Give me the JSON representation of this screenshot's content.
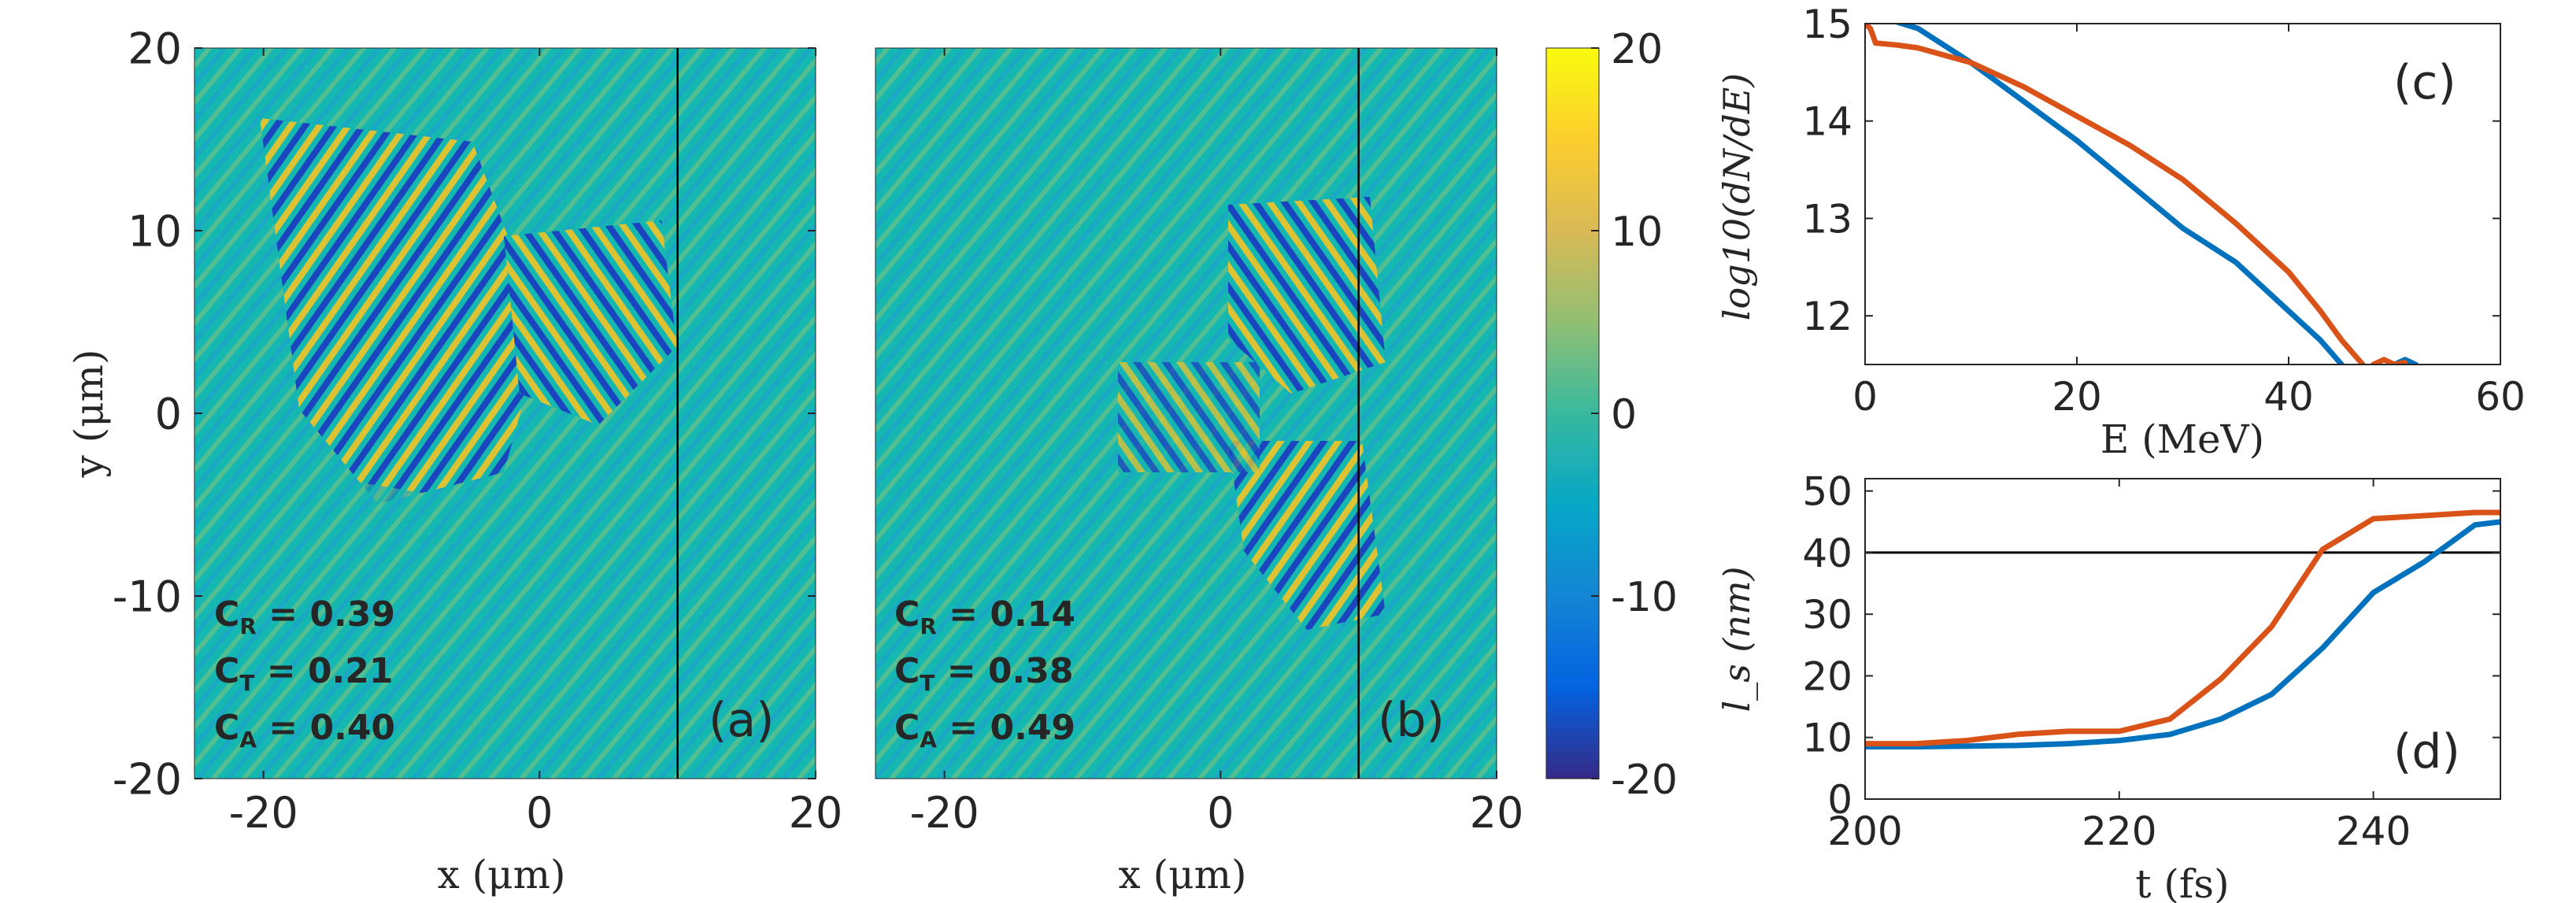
{
  "colors": {
    "series_blue": "#0072BD",
    "series_orange": "#D95319",
    "axis": "#262626",
    "field_background": "#14B8B0",
    "colormap": [
      "#352A87",
      "#0363E1",
      "#1485D4",
      "#06A7C6",
      "#38B99E",
      "#92BF73",
      "#D9BA56",
      "#FCCE2E",
      "#F9FB0E"
    ]
  },
  "chart_data": [
    {
      "type": "heatmap",
      "panel": "(a)",
      "xlabel": "x (μm)",
      "ylabel": "y (μm)",
      "xlim": [
        -25,
        20
      ],
      "ylim": [
        -20,
        20
      ],
      "xticks": [
        "-20",
        "0",
        "20"
      ],
      "yticks": [
        "20",
        "10",
        "0",
        "-10",
        "-20"
      ],
      "vline_x": 10,
      "annotations": [
        {
          "sub": "R",
          "value": "0.39"
        },
        {
          "sub": "T",
          "value": "0.21"
        },
        {
          "sub": "A",
          "value": "0.40"
        }
      ]
    },
    {
      "type": "heatmap",
      "panel": "(b)",
      "xlabel": "x (μm)",
      "xlim": [
        -25,
        20
      ],
      "ylim": [
        -20,
        20
      ],
      "xticks": [
        "-20",
        "0",
        "20"
      ],
      "vline_x": 10,
      "annotations": [
        {
          "sub": "R",
          "value": "0.14"
        },
        {
          "sub": "T",
          "value": "0.38"
        },
        {
          "sub": "A",
          "value": "0.49"
        }
      ]
    },
    {
      "type": "colorbar",
      "range": [
        -20,
        20
      ],
      "ticks": [
        "20",
        "10",
        "0",
        "-10",
        "-20"
      ]
    },
    {
      "type": "line",
      "panel": "(c)",
      "xlabel": "E (MeV)",
      "ylabel": "log10(dN/dE)",
      "xlim": [
        0,
        60
      ],
      "ylim": [
        11.5,
        15
      ],
      "xticks": [
        "0",
        "20",
        "40",
        "60"
      ],
      "yticks": [
        "15",
        "14",
        "13",
        "12"
      ],
      "series": [
        {
          "color": "blue",
          "x": [
            0,
            2,
            5,
            10,
            15,
            20,
            25,
            30,
            35,
            40,
            43,
            45
          ],
          "y": [
            15.3,
            15.05,
            14.95,
            14.6,
            14.2,
            13.8,
            13.35,
            12.9,
            12.55,
            12.05,
            11.75,
            11.5
          ]
        },
        {
          "color": "orange",
          "x": [
            0,
            0.5,
            1,
            3,
            5,
            10,
            15,
            20,
            25,
            30,
            35,
            40,
            43,
            45,
            47
          ],
          "y": [
            15.0,
            14.95,
            14.8,
            14.78,
            14.75,
            14.6,
            14.35,
            14.05,
            13.75,
            13.4,
            12.95,
            12.45,
            12.05,
            11.75,
            11.5
          ]
        }
      ],
      "tail_marks": [
        {
          "color": "blue",
          "x": [
            50,
            51,
            52
          ],
          "y": [
            11.5,
            11.55,
            11.5
          ]
        },
        {
          "color": "orange",
          "x": [
            48,
            49,
            50,
            51
          ],
          "y": [
            11.5,
            11.55,
            11.5,
            11.52
          ]
        }
      ]
    },
    {
      "type": "line",
      "panel": "(d)",
      "xlabel": "t (fs)",
      "ylabel": "l_s (nm)",
      "xlim": [
        200,
        250
      ],
      "ylim": [
        0,
        52
      ],
      "xticks": [
        "200",
        "220",
        "240"
      ],
      "yticks": [
        "50",
        "40",
        "30",
        "20",
        "10",
        "0"
      ],
      "hline_y": 40,
      "series": [
        {
          "color": "blue",
          "x": [
            200,
            204,
            208,
            212,
            216,
            220,
            224,
            228,
            232,
            236,
            240,
            244,
            248,
            250
          ],
          "y": [
            8.5,
            8.5,
            8.6,
            8.7,
            9.0,
            9.5,
            10.5,
            13,
            17,
            24.5,
            33.5,
            38.5,
            44.5,
            45
          ]
        },
        {
          "color": "orange",
          "x": [
            200,
            204,
            208,
            212,
            216,
            220,
            224,
            228,
            232,
            236,
            240,
            244,
            248,
            250
          ],
          "y": [
            9,
            9,
            9.5,
            10.5,
            11,
            11,
            13,
            19.5,
            28,
            40.5,
            45.5,
            46,
            46.5,
            46.5
          ]
        }
      ]
    }
  ]
}
